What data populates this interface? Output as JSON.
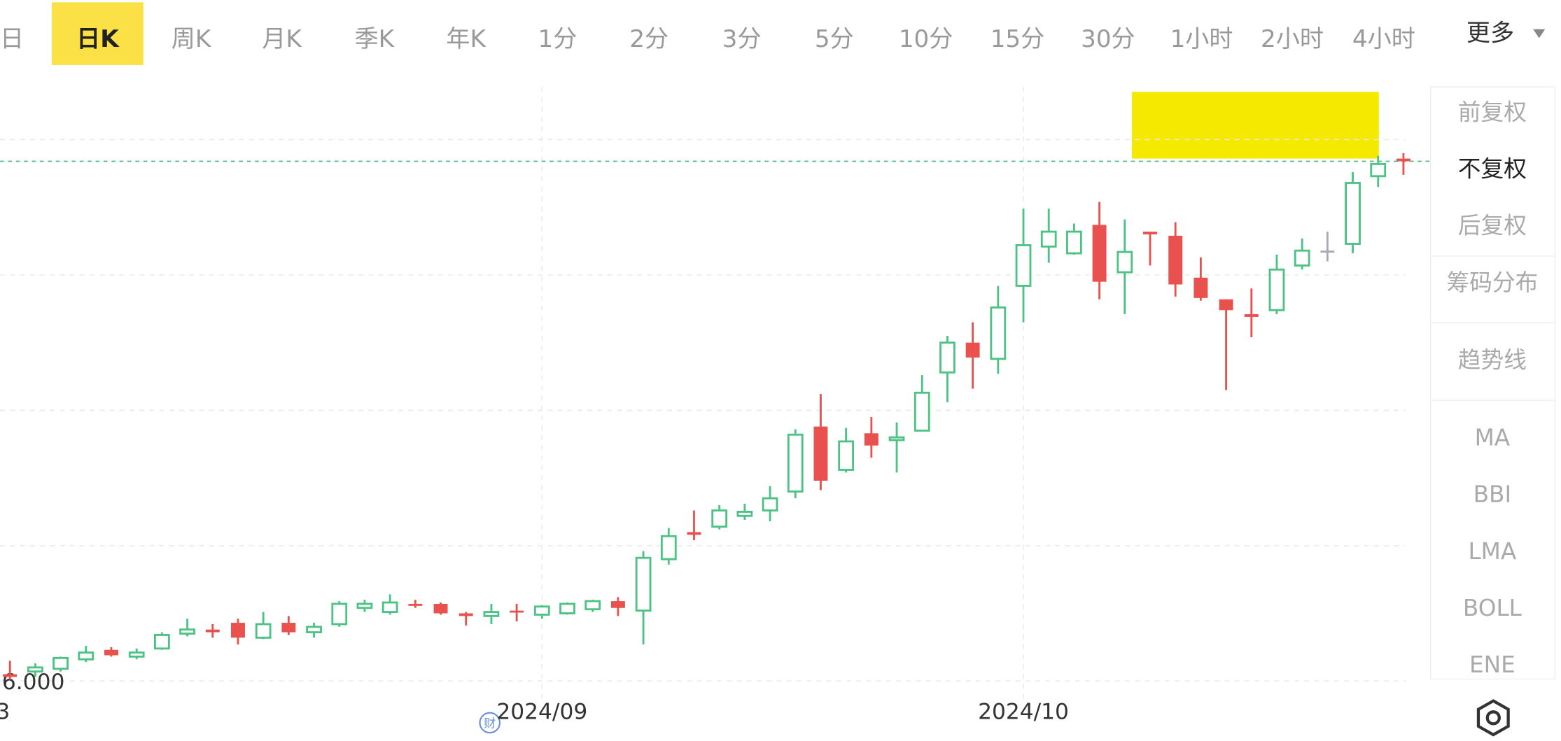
{
  "tabs": [
    "日",
    "日K",
    "周K",
    "月K",
    "季K",
    "年K",
    "1分",
    "2分",
    "3分",
    "5分",
    "10分",
    "15分",
    "30分",
    "1小时",
    "2小时",
    "4小时"
  ],
  "active_tab": 1,
  "more": "更多",
  "side_menu": [
    "前复权",
    "不复权",
    "后复权",
    "筹码分布",
    "趋势线",
    "MA",
    "BBI",
    "LMA",
    "BOLL",
    "ENE"
  ],
  "side_active": 1,
  "badge": "财",
  "chart_data": {
    "type": "candlestick",
    "categories": [
      null,
      null,
      null,
      null,
      null,
      null,
      null,
      null,
      null,
      null,
      null,
      null,
      null,
      null,
      null,
      null,
      null,
      null,
      null,
      null,
      null,
      "2024/09",
      null,
      null,
      null,
      null,
      null,
      null,
      null,
      null,
      null,
      null,
      null,
      null,
      null,
      null,
      null,
      null,
      null,
      null,
      "2024/10",
      null,
      null,
      null,
      null,
      null,
      null,
      null,
      null,
      null,
      null,
      null,
      null,
      null,
      null,
      null
    ],
    "x_partial_label": "3",
    "open": [
      6.05,
      6.07,
      6.09,
      6.16,
      6.23,
      6.18,
      6.24,
      6.35,
      6.38,
      6.43,
      6.32,
      6.43,
      6.36,
      6.42,
      6.54,
      6.51,
      6.57,
      6.57,
      6.5,
      6.48,
      6.52,
      6.49,
      6.5,
      6.53,
      6.59,
      6.52,
      6.9,
      7.1,
      7.14,
      7.22,
      7.26,
      7.4,
      7.88,
      7.56,
      7.83,
      7.78,
      7.85,
      8.28,
      8.5,
      8.38,
      8.92,
      9.21,
      9.16,
      9.37,
      9.02,
      9.32,
      9.29,
      8.98,
      8.82,
      8.71,
      8.74,
      9.07,
      9.18,
      9.23,
      9.73,
      9.86
    ],
    "high": [
      6.15,
      6.13,
      6.18,
      6.26,
      6.25,
      6.24,
      6.36,
      6.46,
      6.42,
      6.46,
      6.51,
      6.48,
      6.43,
      6.59,
      6.6,
      6.64,
      6.6,
      6.58,
      6.51,
      6.57,
      6.57,
      6.56,
      6.58,
      6.6,
      6.62,
      6.96,
      7.13,
      7.26,
      7.3,
      7.31,
      7.44,
      7.86,
      8.12,
      7.87,
      7.95,
      7.91,
      8.26,
      8.55,
      8.65,
      8.92,
      9.49,
      9.49,
      9.38,
      9.54,
      9.41,
      9.32,
      9.39,
      9.13,
      8.82,
      8.9,
      9.15,
      9.27,
      9.32,
      9.76,
      9.88,
      9.9
    ],
    "low": [
      6.01,
      6.03,
      6.07,
      6.14,
      6.18,
      6.16,
      6.23,
      6.33,
      6.32,
      6.27,
      6.31,
      6.34,
      6.32,
      6.4,
      6.51,
      6.49,
      6.54,
      6.49,
      6.41,
      6.42,
      6.44,
      6.46,
      6.49,
      6.51,
      6.48,
      6.27,
      6.86,
      7.04,
      7.12,
      7.19,
      7.18,
      7.35,
      7.41,
      7.54,
      7.65,
      7.54,
      7.85,
      8.06,
      8.16,
      8.27,
      8.65,
      9.09,
      9.15,
      8.82,
      8.71,
      9.07,
      8.84,
      8.81,
      8.15,
      8.54,
      8.71,
      9.04,
      9.1,
      9.16,
      9.65,
      9.74
    ],
    "close": [
      6.03,
      6.1,
      6.17,
      6.21,
      6.19,
      6.21,
      6.34,
      6.38,
      6.36,
      6.32,
      6.42,
      6.36,
      6.4,
      6.57,
      6.57,
      6.58,
      6.56,
      6.5,
      6.48,
      6.51,
      6.51,
      6.55,
      6.57,
      6.59,
      6.54,
      6.91,
      7.07,
      7.08,
      7.26,
      7.25,
      7.35,
      7.82,
      7.48,
      7.77,
      7.74,
      7.8,
      8.13,
      8.5,
      8.39,
      8.76,
      9.22,
      9.32,
      9.32,
      8.95,
      9.17,
      9.3,
      8.93,
      8.83,
      8.74,
      8.69,
      9.04,
      9.18,
      9.18,
      9.68,
      9.82,
      9.84
    ],
    "up_color": "#4cc285",
    "down_color": "#e8514e",
    "flat_color": "#a9a9b3",
    "last_price": 9.84,
    "ylim": [
      6,
      10
    ],
    "yticks": [
      {
        "value": 6,
        "label": "6.000"
      }
    ],
    "ygrid": [
      7,
      8,
      9,
      10
    ]
  }
}
